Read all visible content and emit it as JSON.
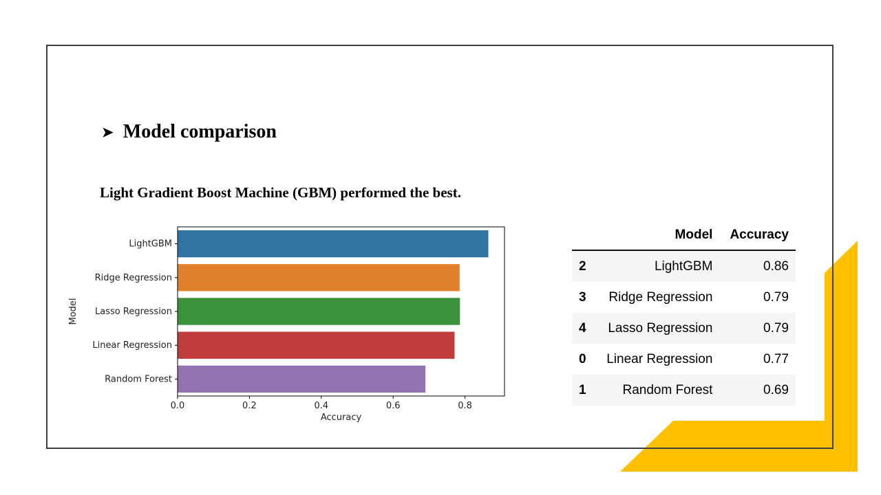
{
  "slide": {
    "bullet_icon": "arrow-bullet-icon",
    "heading": "Model comparison",
    "subtitle": "Light Gradient Boost Machine (GBM) performed the best.",
    "accent_color": "#FFC000",
    "frame_color": "#3F3F3F"
  },
  "chart_data": {
    "type": "bar",
    "orientation": "horizontal",
    "categories": [
      "LightGBM",
      "Ridge Regression",
      "Lasso Regression",
      "Linear Regression",
      "Random Forest"
    ],
    "values": [
      0.865,
      0.785,
      0.786,
      0.771,
      0.69
    ],
    "colors": [
      "#3274A1",
      "#E1812C",
      "#3A923A",
      "#C03D3E",
      "#9372B2"
    ],
    "xlabel": "Accuracy",
    "ylabel": "Model",
    "xlim": [
      0,
      0.91
    ],
    "xticks": [
      0.0,
      0.2,
      0.4,
      0.6,
      0.8
    ],
    "xtick_labels": [
      "0.0",
      "0.2",
      "0.4",
      "0.6",
      "0.8"
    ],
    "grid": false
  },
  "table": {
    "headers": [
      "",
      "Model",
      "Accuracy"
    ],
    "rows": [
      {
        "index": "2",
        "model": "LightGBM",
        "accuracy": "0.86"
      },
      {
        "index": "3",
        "model": "Ridge Regression",
        "accuracy": "0.79"
      },
      {
        "index": "4",
        "model": "Lasso Regression",
        "accuracy": "0.79"
      },
      {
        "index": "0",
        "model": "Linear Regression",
        "accuracy": "0.77"
      },
      {
        "index": "1",
        "model": "Random Forest",
        "accuracy": "0.69"
      }
    ]
  }
}
